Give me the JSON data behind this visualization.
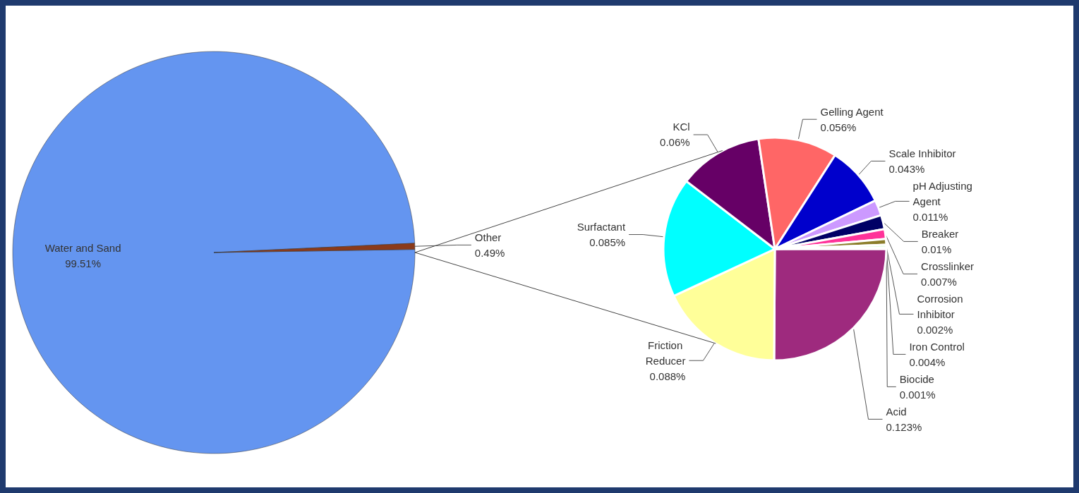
{
  "chart_data": [
    {
      "type": "pie",
      "categories": [
        "Water and Sand",
        "Other"
      ],
      "values": [
        99.51,
        0.49
      ],
      "value_labels": [
        "99.51%",
        "0.49%"
      ],
      "colors": [
        "#6495f0",
        "#8b3a1a"
      ]
    },
    {
      "type": "pie",
      "categories": [
        "Acid",
        "Friction Reducer",
        "Surfactant",
        "KCl",
        "Gelling Agent",
        "Scale Inhibitor",
        "pH Adjusting Agent",
        "Breaker",
        "Crosslinker",
        "Iron Control",
        "Corrosion Inhibitor",
        "Biocide"
      ],
      "values": [
        0.123,
        0.088,
        0.085,
        0.06,
        0.056,
        0.043,
        0.011,
        0.01,
        0.007,
        0.004,
        0.002,
        0.001
      ],
      "value_labels": [
        "0.123%",
        "0.088%",
        "0.085%",
        "0.06%",
        "0.056%",
        "0.043%",
        "0.011%",
        "0.01%",
        "0.007%",
        "0.004%",
        "0.002%",
        "0.001%"
      ],
      "colors": [
        "#9e2a7e",
        "#ffff99",
        "#00ffff",
        "#660066",
        "#ff6666",
        "#0000cc",
        "#cc99ff",
        "#000066",
        "#ff3399",
        "#8b7d2a",
        "#ccffcc",
        "#ff9900"
      ]
    }
  ]
}
